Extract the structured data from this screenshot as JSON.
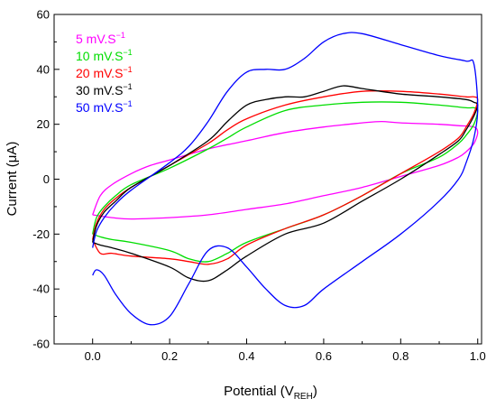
{
  "chart_data": {
    "type": "line",
    "xlabel": "Potential (V",
    "xlabel_sub": "REH",
    "xlabel_close": ")",
    "ylabel": "Current (μA)",
    "xlim": [
      -0.1,
      1.01
    ],
    "ylim": [
      -60,
      60
    ],
    "x_ticks": [
      0.0,
      0.2,
      0.4,
      0.6,
      0.8,
      1.0
    ],
    "x_tick_labels": [
      "0.0",
      "0.2",
      "0.4",
      "0.6",
      "0.8",
      "1.0"
    ],
    "y_ticks": [
      -60,
      -40,
      -20,
      0,
      20,
      40,
      60
    ],
    "y_tick_labels": [
      "-60",
      "-40",
      "-20",
      "0",
      "20",
      "40",
      "60"
    ],
    "grid": false,
    "legend_position": "top-left",
    "series": [
      {
        "name": "5 mV.S",
        "name_sup": "−1",
        "color": "#ff00ff",
        "x": [
          0.0,
          0.02,
          0.05,
          0.1,
          0.15,
          0.2,
          0.3,
          0.4,
          0.5,
          0.6,
          0.7,
          0.75,
          0.8,
          0.9,
          0.95,
          0.99,
          1.0,
          0.99,
          0.97,
          0.95,
          0.9,
          0.8,
          0.7,
          0.6,
          0.5,
          0.4,
          0.3,
          0.2,
          0.1,
          0.05,
          0.0
        ],
        "y": [
          -13,
          -6,
          -2,
          2,
          5,
          7,
          11,
          14,
          17,
          19,
          20.5,
          21,
          20.5,
          20,
          19.5,
          19,
          17,
          13,
          10,
          8,
          5,
          1,
          -3,
          -6,
          -9,
          -11,
          -13,
          -14,
          -14.5,
          -14,
          -13
        ]
      },
      {
        "name": "10 mV.S",
        "name_sup": "−1",
        "color": "#00dd00",
        "x": [
          0.0,
          0.01,
          0.03,
          0.06,
          0.1,
          0.2,
          0.3,
          0.35,
          0.4,
          0.5,
          0.6,
          0.7,
          0.8,
          0.9,
          0.97,
          0.99,
          1.0,
          0.99,
          0.97,
          0.95,
          0.9,
          0.8,
          0.7,
          0.6,
          0.5,
          0.4,
          0.35,
          0.3,
          0.25,
          0.2,
          0.1,
          0.05,
          0.02,
          0.0
        ],
        "y": [
          -20,
          -14,
          -10,
          -6,
          -2,
          4,
          11,
          15,
          19,
          25,
          27,
          28,
          28,
          27,
          26,
          26,
          25,
          20,
          16,
          13,
          8,
          2,
          -6,
          -13,
          -18,
          -23,
          -27,
          -30,
          -29,
          -26,
          -23,
          -22,
          -21,
          -20
        ]
      },
      {
        "name": "20 mV.S",
        "name_sup": "−1",
        "color": "#ff0000",
        "x": [
          0.0,
          0.01,
          0.03,
          0.06,
          0.1,
          0.2,
          0.3,
          0.35,
          0.4,
          0.5,
          0.6,
          0.7,
          0.8,
          0.9,
          0.97,
          0.99,
          1.0,
          0.99,
          0.97,
          0.95,
          0.9,
          0.8,
          0.7,
          0.6,
          0.5,
          0.4,
          0.35,
          0.3,
          0.25,
          0.2,
          0.1,
          0.05,
          0.02,
          0.0
        ],
        "y": [
          -22,
          -16,
          -11,
          -7,
          -3,
          5,
          13,
          18,
          22,
          27,
          30,
          32,
          32,
          31,
          30,
          30,
          29,
          24,
          19,
          15,
          10,
          2,
          -6,
          -13,
          -18,
          -24,
          -29,
          -31,
          -30,
          -29,
          -28,
          -27,
          -27,
          -22
        ]
      },
      {
        "name": "30 mV.S",
        "name_sup": "−1",
        "color": "#000000",
        "x": [
          0.0,
          0.01,
          0.03,
          0.06,
          0.1,
          0.2,
          0.3,
          0.35,
          0.4,
          0.45,
          0.5,
          0.55,
          0.6,
          0.65,
          0.7,
          0.8,
          0.9,
          0.97,
          0.99,
          1.0,
          0.99,
          0.97,
          0.95,
          0.9,
          0.8,
          0.7,
          0.6,
          0.5,
          0.4,
          0.35,
          0.3,
          0.25,
          0.2,
          0.1,
          0.05,
          0.02,
          0.0
        ],
        "y": [
          -23,
          -17,
          -12,
          -8,
          -3,
          5,
          14,
          21,
          27,
          29,
          30,
          30,
          32,
          34,
          33,
          31,
          30,
          29,
          28,
          27,
          23,
          18,
          14,
          9,
          0,
          -8,
          -16,
          -20,
          -28,
          -33,
          -37,
          -36,
          -32,
          -27,
          -25,
          -24,
          -23
        ]
      },
      {
        "name": "50 mV.S",
        "name_sup": "−1",
        "color": "#0000ff",
        "x": [
          0.0,
          0.01,
          0.03,
          0.06,
          0.1,
          0.2,
          0.25,
          0.3,
          0.35,
          0.4,
          0.45,
          0.5,
          0.55,
          0.6,
          0.65,
          0.7,
          0.8,
          0.9,
          0.97,
          0.99,
          1.0,
          0.99,
          0.97,
          0.95,
          0.9,
          0.8,
          0.7,
          0.6,
          0.55,
          0.5,
          0.45,
          0.4,
          0.35,
          0.3,
          0.25,
          0.2,
          0.15,
          0.1,
          0.06,
          0.03,
          0.01,
          0.0
        ],
        "y": [
          -25,
          -19,
          -14,
          -9,
          -4,
          6,
          12,
          21,
          32,
          39,
          40,
          40,
          44,
          50,
          53,
          53,
          49,
          45,
          43,
          42,
          26,
          15,
          6,
          0,
          -8,
          -20,
          -30,
          -40,
          -46,
          -46,
          -40,
          -32,
          -25,
          -26,
          -38,
          -50,
          -53,
          -49,
          -42,
          -35,
          -33,
          -35
        ]
      }
    ]
  }
}
